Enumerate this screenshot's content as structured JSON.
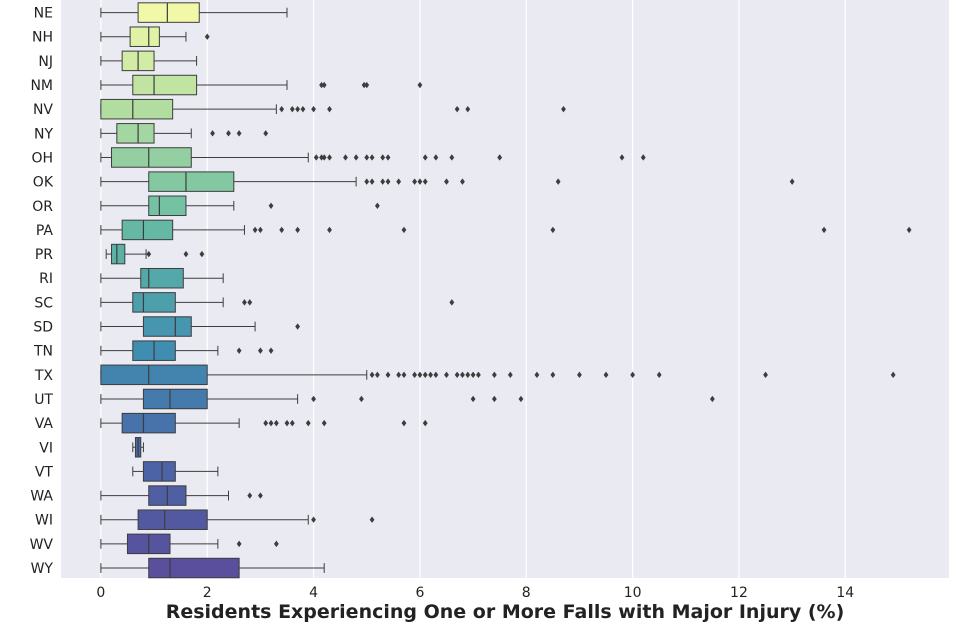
{
  "chart_data": {
    "type": "boxplot",
    "orientation": "horizontal",
    "title": "",
    "xlabel": "Residents Experiencing One or More Falls with Major Injury (%)",
    "ylabel": "",
    "xlim": [
      -0.75,
      15.95
    ],
    "xticks": [
      0,
      2,
      4,
      6,
      8,
      10,
      12,
      14
    ],
    "grid": true,
    "palette": "viridis-yellow-to-purple",
    "colors": {
      "background": "#eaeaf2",
      "grid": "#ffffff",
      "line": "#3d3d3d",
      "palette_start": "#f1f8a8",
      "palette_end": "#5a4f9c"
    },
    "categories": [
      "NE",
      "NH",
      "NJ",
      "NM",
      "NV",
      "NY",
      "OH",
      "OK",
      "OR",
      "PA",
      "PR",
      "RI",
      "SC",
      "SD",
      "TN",
      "TX",
      "UT",
      "VA",
      "VI",
      "VT",
      "WA",
      "WI",
      "WV",
      "WY"
    ],
    "boxes": [
      {
        "label": "NE",
        "whisker_low": 0,
        "q1": 0.7,
        "median": 1.25,
        "q3": 1.85,
        "whisker_high": 3.5,
        "outliers": []
      },
      {
        "label": "NH",
        "whisker_low": 0,
        "q1": 0.55,
        "median": 0.9,
        "q3": 1.1,
        "whisker_high": 1.6,
        "outliers": [
          2.0
        ]
      },
      {
        "label": "NJ",
        "whisker_low": 0,
        "q1": 0.4,
        "median": 0.7,
        "q3": 1.0,
        "whisker_high": 1.8,
        "outliers": []
      },
      {
        "label": "NM",
        "whisker_low": 0,
        "q1": 0.6,
        "median": 1.0,
        "q3": 1.8,
        "whisker_high": 3.5,
        "outliers": [
          4.15,
          4.2,
          4.95,
          5.0,
          6.0
        ]
      },
      {
        "label": "NV",
        "whisker_low": 0,
        "q1": 0,
        "median": 0.6,
        "q3": 1.35,
        "whisker_high": 3.3,
        "outliers": [
          3.4,
          3.6,
          3.7,
          3.8,
          4.0,
          4.3,
          6.7,
          6.9,
          8.7
        ]
      },
      {
        "label": "NY",
        "whisker_low": 0,
        "q1": 0.3,
        "median": 0.7,
        "q3": 1.0,
        "whisker_high": 1.7,
        "outliers": [
          2.1,
          2.4,
          2.6,
          3.1
        ]
      },
      {
        "label": "OH",
        "whisker_low": 0,
        "q1": 0.2,
        "median": 0.9,
        "q3": 1.7,
        "whisker_high": 3.9,
        "outliers": [
          4.05,
          4.15,
          4.2,
          4.3,
          4.6,
          4.8,
          5.0,
          5.1,
          5.3,
          5.4,
          6.1,
          6.3,
          6.6,
          7.5,
          9.8,
          10.2
        ]
      },
      {
        "label": "OK",
        "whisker_low": 0,
        "q1": 0.9,
        "median": 1.6,
        "q3": 2.5,
        "whisker_high": 4.8,
        "outliers": [
          5.0,
          5.1,
          5.3,
          5.4,
          5.6,
          5.9,
          6.0,
          6.1,
          6.5,
          6.8,
          8.6,
          13.0
        ]
      },
      {
        "label": "OR",
        "whisker_low": 0,
        "q1": 0.9,
        "median": 1.1,
        "q3": 1.6,
        "whisker_high": 2.5,
        "outliers": [
          3.2,
          5.2
        ]
      },
      {
        "label": "PA",
        "whisker_low": 0,
        "q1": 0.4,
        "median": 0.8,
        "q3": 1.35,
        "whisker_high": 2.7,
        "outliers": [
          2.9,
          3.0,
          3.4,
          3.7,
          4.3,
          5.7,
          8.5,
          13.6,
          15.2
        ]
      },
      {
        "label": "PR",
        "whisker_low": 0.1,
        "q1": 0.2,
        "median": 0.3,
        "q3": 0.45,
        "whisker_high": 0.85,
        "outliers": [
          0.9,
          1.6,
          1.9
        ]
      },
      {
        "label": "RI",
        "whisker_low": 0,
        "q1": 0.75,
        "median": 0.9,
        "q3": 1.55,
        "whisker_high": 2.3,
        "outliers": []
      },
      {
        "label": "SC",
        "whisker_low": 0,
        "q1": 0.6,
        "median": 0.8,
        "q3": 1.4,
        "whisker_high": 2.3,
        "outliers": [
          2.7,
          2.8,
          6.6
        ]
      },
      {
        "label": "SD",
        "whisker_low": 0,
        "q1": 0.8,
        "median": 1.4,
        "q3": 1.7,
        "whisker_high": 2.9,
        "outliers": [
          3.7
        ]
      },
      {
        "label": "TN",
        "whisker_low": 0,
        "q1": 0.6,
        "median": 1.0,
        "q3": 1.4,
        "whisker_high": 2.2,
        "outliers": [
          2.6,
          3.0,
          3.2
        ]
      },
      {
        "label": "TX",
        "whisker_low": 0,
        "q1": 0,
        "median": 0.9,
        "q3": 2.0,
        "whisker_high": 5.0,
        "outliers": [
          5.1,
          5.2,
          5.4,
          5.6,
          5.7,
          5.9,
          6.0,
          6.1,
          6.2,
          6.3,
          6.5,
          6.7,
          6.8,
          6.9,
          7.0,
          7.1,
          7.4,
          7.7,
          8.2,
          8.5,
          9.0,
          9.5,
          10.0,
          10.5,
          12.5,
          14.9
        ]
      },
      {
        "label": "UT",
        "whisker_low": 0,
        "q1": 0.8,
        "median": 1.3,
        "q3": 2.0,
        "whisker_high": 3.7,
        "outliers": [
          4.0,
          4.9,
          7.0,
          7.4,
          7.9,
          11.5
        ]
      },
      {
        "label": "VA",
        "whisker_low": 0,
        "q1": 0.4,
        "median": 0.8,
        "q3": 1.4,
        "whisker_high": 2.6,
        "outliers": [
          3.1,
          3.2,
          3.3,
          3.5,
          3.6,
          3.9,
          4.2,
          5.7,
          6.1
        ]
      },
      {
        "label": "VI",
        "whisker_low": 0.6,
        "q1": 0.65,
        "median": 0.7,
        "q3": 0.75,
        "whisker_high": 0.8,
        "outliers": []
      },
      {
        "label": "VT",
        "whisker_low": 0.6,
        "q1": 0.8,
        "median": 1.15,
        "q3": 1.4,
        "whisker_high": 2.2,
        "outliers": []
      },
      {
        "label": "WA",
        "whisker_low": 0,
        "q1": 0.9,
        "median": 1.25,
        "q3": 1.6,
        "whisker_high": 2.4,
        "outliers": [
          2.8,
          3.0
        ]
      },
      {
        "label": "WI",
        "whisker_low": 0,
        "q1": 0.7,
        "median": 1.2,
        "q3": 2.0,
        "whisker_high": 3.9,
        "outliers": [
          4.0,
          5.1
        ]
      },
      {
        "label": "WV",
        "whisker_low": 0,
        "q1": 0.5,
        "median": 0.9,
        "q3": 1.3,
        "whisker_high": 2.2,
        "outliers": [
          2.6,
          3.3
        ]
      },
      {
        "label": "WY",
        "whisker_low": 0,
        "q1": 0.9,
        "median": 1.3,
        "q3": 2.6,
        "whisker_high": 4.2,
        "outliers": []
      }
    ]
  }
}
